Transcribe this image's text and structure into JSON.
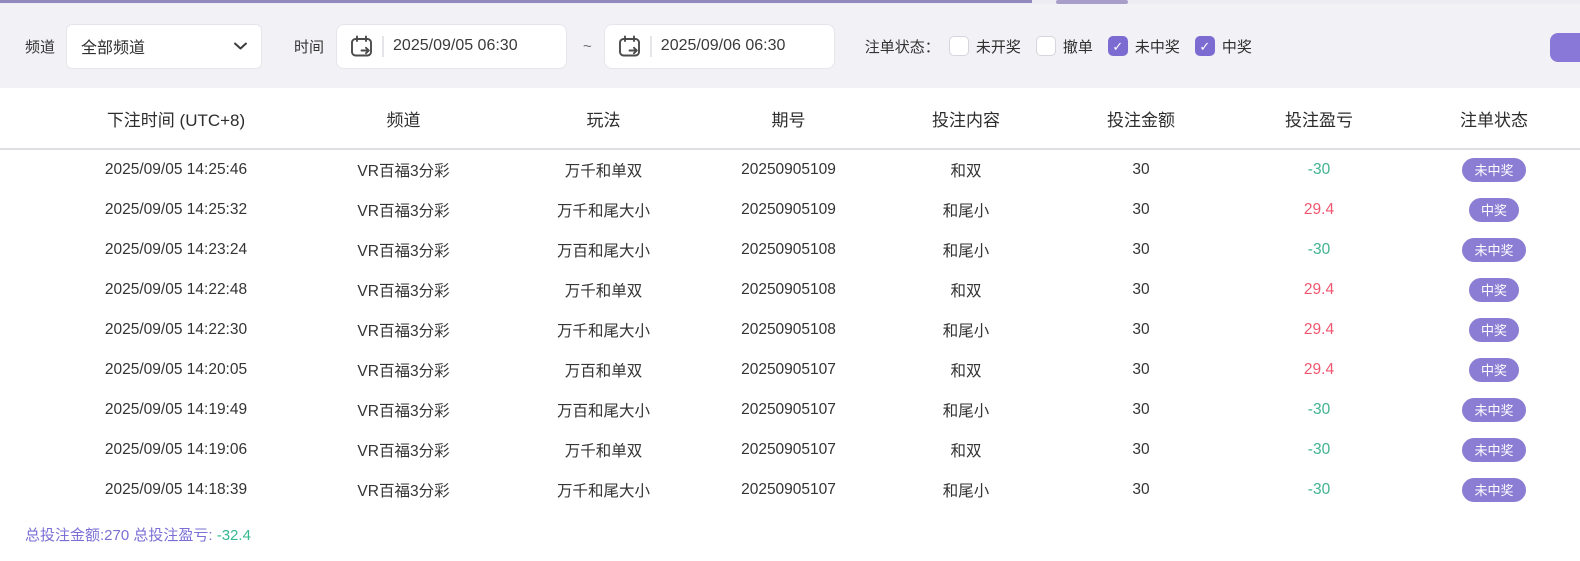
{
  "filters": {
    "channel_label": "频道",
    "channel_value": "全部频道",
    "time_label": "时间",
    "date_from": "2025/09/05 06:30",
    "range_separator": "~",
    "date_to": "2025/09/06 06:30",
    "status_label": "注单状态：",
    "status_options": [
      {
        "label": "未开奖",
        "checked": false
      },
      {
        "label": "撤单",
        "checked": false
      },
      {
        "label": "未中奖",
        "checked": true
      },
      {
        "label": "中奖",
        "checked": true
      }
    ]
  },
  "table": {
    "columns": [
      "下注时间 (UTC+8)",
      "频道",
      "玩法",
      "期号",
      "投注内容",
      "投注金额",
      "投注盈亏",
      "注单状态"
    ],
    "rows": [
      {
        "time": "2025/09/05 14:25:46",
        "channel": "VR百福3分彩",
        "play": "万千和单双",
        "period": "20250905109",
        "content": "和双",
        "amount": "30",
        "profit": "-30",
        "status": "未中奖"
      },
      {
        "time": "2025/09/05 14:25:32",
        "channel": "VR百福3分彩",
        "play": "万千和尾大小",
        "period": "20250905109",
        "content": "和尾小",
        "amount": "30",
        "profit": "29.4",
        "status": "中奖"
      },
      {
        "time": "2025/09/05 14:23:24",
        "channel": "VR百福3分彩",
        "play": "万百和尾大小",
        "period": "20250905108",
        "content": "和尾小",
        "amount": "30",
        "profit": "-30",
        "status": "未中奖"
      },
      {
        "time": "2025/09/05 14:22:48",
        "channel": "VR百福3分彩",
        "play": "万千和单双",
        "period": "20250905108",
        "content": "和双",
        "amount": "30",
        "profit": "29.4",
        "status": "中奖"
      },
      {
        "time": "2025/09/05 14:22:30",
        "channel": "VR百福3分彩",
        "play": "万千和尾大小",
        "period": "20250905108",
        "content": "和尾小",
        "amount": "30",
        "profit": "29.4",
        "status": "中奖"
      },
      {
        "time": "2025/09/05 14:20:05",
        "channel": "VR百福3分彩",
        "play": "万百和单双",
        "period": "20250905107",
        "content": "和双",
        "amount": "30",
        "profit": "29.4",
        "status": "中奖"
      },
      {
        "time": "2025/09/05 14:19:49",
        "channel": "VR百福3分彩",
        "play": "万百和尾大小",
        "period": "20250905107",
        "content": "和尾小",
        "amount": "30",
        "profit": "-30",
        "status": "未中奖"
      },
      {
        "time": "2025/09/05 14:19:06",
        "channel": "VR百福3分彩",
        "play": "万千和单双",
        "period": "20250905107",
        "content": "和双",
        "amount": "30",
        "profit": "-30",
        "status": "未中奖"
      },
      {
        "time": "2025/09/05 14:18:39",
        "channel": "VR百福3分彩",
        "play": "万千和尾大小",
        "period": "20250905107",
        "content": "和尾小",
        "amount": "30",
        "profit": "-30",
        "status": "未中奖"
      }
    ]
  },
  "summary": {
    "total_label": "总投注金额:",
    "total_value": "270",
    "profit_label": "总投注盈亏:",
    "profit_value": "-32.4"
  },
  "colors": {
    "accent_purple": "#8b7cd4",
    "checkbox_purple": "#7c6cd2",
    "profit_win_red": "#f0566e",
    "profit_loss_teal": "#3fb28f",
    "summary_purple": "#7a6fd6",
    "summary_teal": "#35b992",
    "filter_bar_bg": "#f2f2f6"
  }
}
